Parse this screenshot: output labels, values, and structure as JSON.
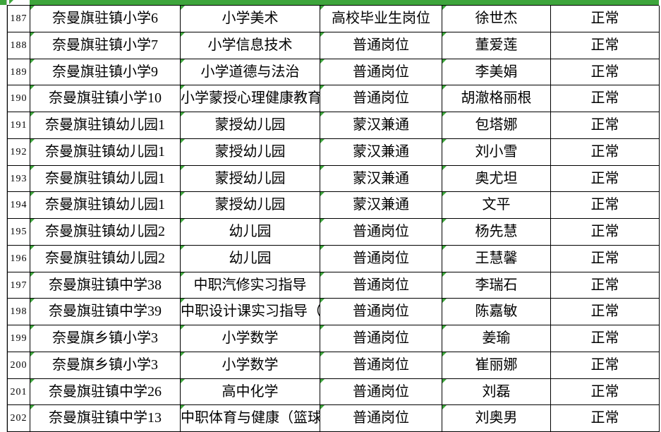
{
  "colors": {
    "indicator_green": "#3EA53C",
    "grid_border": "#000000",
    "gutter_line": "#b8b8b8"
  },
  "icons": {
    "error_indicator": "green-corner-triangle"
  },
  "rows": [
    {
      "num": "187",
      "school": "奈曼旗驻镇小学6",
      "subject": "小学美术",
      "type": "高校毕业生岗位",
      "name": "徐世杰",
      "status": "正常"
    },
    {
      "num": "188",
      "school": "奈曼旗驻镇小学7",
      "subject": "小学信息技术",
      "type": "普通岗位",
      "name": "董爱莲",
      "status": "正常"
    },
    {
      "num": "189",
      "school": "奈曼旗驻镇小学9",
      "subject": "小学道德与法治",
      "type": "普通岗位",
      "name": "李美娟",
      "status": "正常"
    },
    {
      "num": "190",
      "school": "奈曼旗驻镇小学10",
      "subject": "小学蒙授心理健康教育",
      "type": "普通岗位",
      "name": "胡澈格丽根",
      "status": "正常"
    },
    {
      "num": "191",
      "school": "奈曼旗驻镇幼儿园1",
      "subject": "蒙授幼儿园",
      "type": "蒙汉兼通",
      "name": "包塔娜",
      "status": "正常"
    },
    {
      "num": "192",
      "school": "奈曼旗驻镇幼儿园1",
      "subject": "蒙授幼儿园",
      "type": "蒙汉兼通",
      "name": "刘小雪",
      "status": "正常"
    },
    {
      "num": "193",
      "school": "奈曼旗驻镇幼儿园1",
      "subject": "蒙授幼儿园",
      "type": "蒙汉兼通",
      "name": "奥尤坦",
      "status": "正常"
    },
    {
      "num": "194",
      "school": "奈曼旗驻镇幼儿园1",
      "subject": "蒙授幼儿园",
      "type": "蒙汉兼通",
      "name": "文平",
      "status": "正常"
    },
    {
      "num": "195",
      "school": "奈曼旗驻镇幼儿园2",
      "subject": "幼儿园",
      "type": "普通岗位",
      "name": "杨先慧",
      "status": "正常"
    },
    {
      "num": "196",
      "school": "奈曼旗驻镇幼儿园2",
      "subject": "幼儿园",
      "type": "普通岗位",
      "name": "王慧馨",
      "status": "正常"
    },
    {
      "num": "197",
      "school": "奈曼旗驻镇中学38",
      "subject": "中职汽修实习指导",
      "type": "普通岗位",
      "name": "李瑞石",
      "status": "正常"
    },
    {
      "num": "198",
      "school": "奈曼旗驻镇中学39",
      "subject": "中职设计课实习指导（产品设计）",
      "type": "普通岗位",
      "name": "陈嘉敏",
      "status": "正常"
    },
    {
      "num": "199",
      "school": "奈曼旗乡镇小学3",
      "subject": "小学数学",
      "type": "普通岗位",
      "name": "姜瑜",
      "status": "正常"
    },
    {
      "num": "200",
      "school": "奈曼旗乡镇小学3",
      "subject": "小学数学",
      "type": "普通岗位",
      "name": "崔丽娜",
      "status": "正常"
    },
    {
      "num": "201",
      "school": "奈曼旗驻镇中学26",
      "subject": "高中化学",
      "type": "普通岗位",
      "name": "刘磊",
      "status": "正常"
    },
    {
      "num": "202",
      "school": "奈曼旗驻镇中学13",
      "subject": "中职体育与健康（篮球方向）",
      "type": "普通岗位",
      "name": "刘奥男",
      "status": "正常"
    }
  ]
}
